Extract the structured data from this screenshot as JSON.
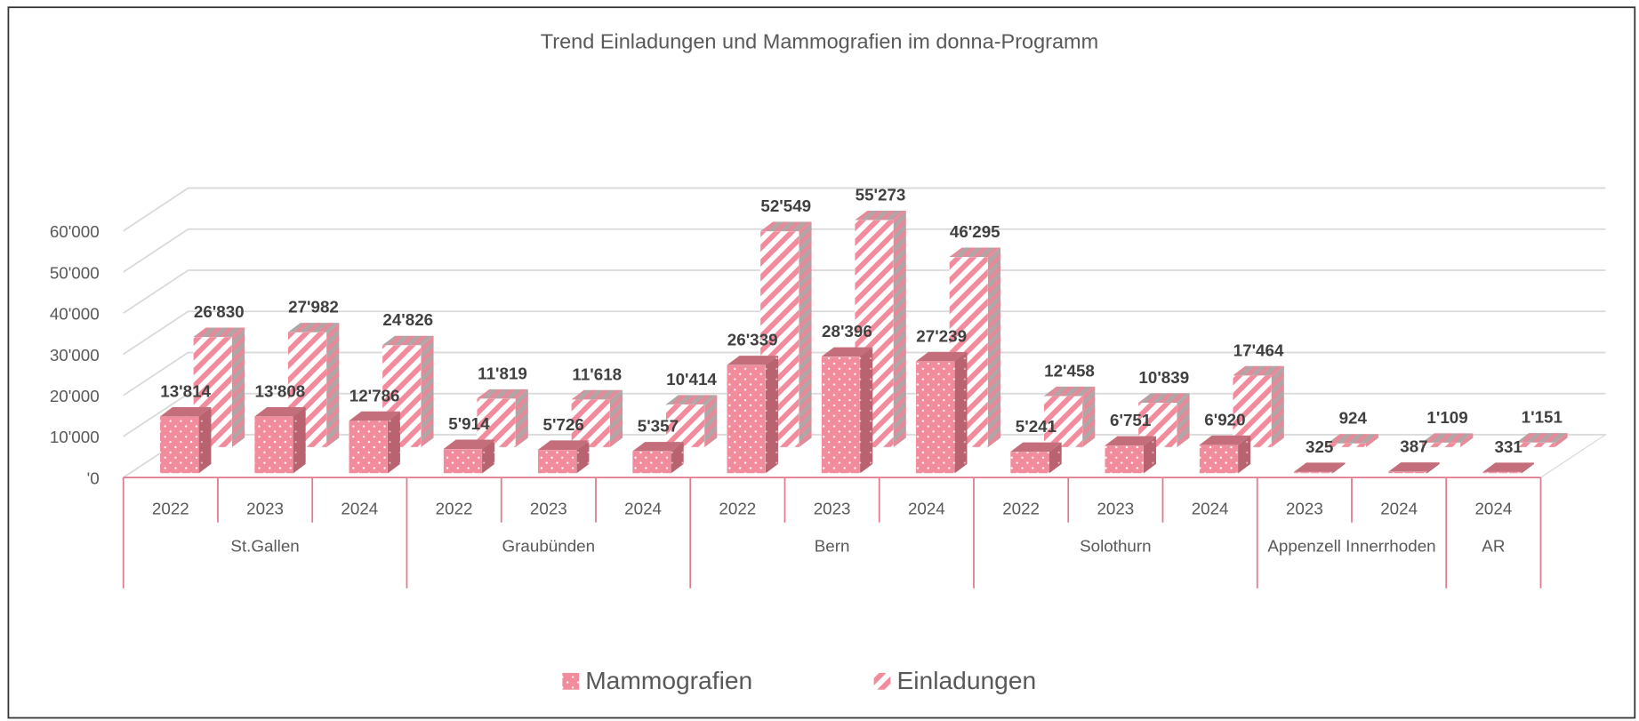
{
  "chart_data": {
    "type": "bar3d",
    "title": "Trend Einladungen und Mammografien im donna-Programm",
    "groups": [
      {
        "name": "St.Gallen",
        "categories": [
          "2022",
          "2023",
          "2024"
        ]
      },
      {
        "name": "Graubünden",
        "categories": [
          "2022",
          "2023",
          "2024"
        ]
      },
      {
        "name": "Bern",
        "categories": [
          "2022",
          "2023",
          "2024"
        ]
      },
      {
        "name": "Solothurn",
        "categories": [
          "2022",
          "2023",
          "2024"
        ]
      },
      {
        "name": "Appenzell Innerrhoden",
        "categories": [
          "2023",
          "2024"
        ]
      },
      {
        "name": "AR",
        "categories": [
          "2024"
        ]
      }
    ],
    "series": [
      {
        "name": "Mammografien",
        "color": "#f28c9c",
        "values": [
          13814,
          13808,
          12786,
          5914,
          5726,
          5357,
          26339,
          28396,
          27239,
          5241,
          6751,
          6920,
          325,
          387,
          331
        ],
        "value_labels": [
          "13'814",
          "13'808",
          "12'786",
          "5'914",
          "5'726",
          "5'357",
          "26'339",
          "28'396",
          "27'239",
          "5'241",
          "6'751",
          "6'920",
          "325",
          "387",
          "331"
        ]
      },
      {
        "name": "Einladungen",
        "color": "#f28c9c",
        "values": [
          26830,
          27982,
          24826,
          11819,
          11618,
          10414,
          52549,
          55273,
          46295,
          12458,
          10839,
          17464,
          924,
          1109,
          1151
        ],
        "value_labels": [
          "26'830",
          "27'982",
          "24'826",
          "11'819",
          "11'618",
          "10'414",
          "52'549",
          "55'273",
          "46'295",
          "12'458",
          "10'839",
          "17'464",
          "924",
          "1'109",
          "1'151"
        ]
      }
    ],
    "ylim": [
      0,
      60000
    ],
    "yticks": [
      {
        "value": 0,
        "label": "'0"
      },
      {
        "value": 10000,
        "label": "10'000"
      },
      {
        "value": 20000,
        "label": "20'000"
      },
      {
        "value": 30000,
        "label": "30'000"
      },
      {
        "value": 40000,
        "label": "40'000"
      },
      {
        "value": 50000,
        "label": "50'000"
      },
      {
        "value": 60000,
        "label": "60'000"
      }
    ],
    "grid": true,
    "legend": "bottom"
  }
}
